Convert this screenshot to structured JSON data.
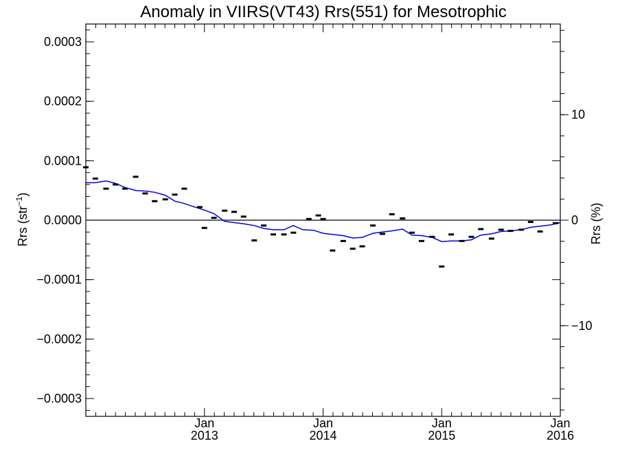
{
  "chart_data": {
    "type": "scatter",
    "title": "Anomaly in VIIRS(VT43) Rrs(551) for Mesotrophic",
    "ylabel_left": "Rrs (str",
    "ylabel_left_sup": "−1",
    "ylabel_left_end": ")",
    "ylabel_right": "Rrs (%)",
    "xlim": [
      2012.0,
      2016.0
    ],
    "ylim": [
      -0.00033,
      0.00033
    ],
    "y2lim": [
      -18.6,
      18.6
    ],
    "x_ticks": [
      {
        "x": 2013.0,
        "month": "Jan",
        "year": "2013"
      },
      {
        "x": 2014.0,
        "month": "Jan",
        "year": "2014"
      },
      {
        "x": 2015.0,
        "month": "Jan",
        "year": "2015"
      },
      {
        "x": 2016.0,
        "month": "Jan",
        "year": "2016"
      }
    ],
    "y_ticks": [
      {
        "value": 0.0003,
        "label": "0.0003"
      },
      {
        "value": 0.0002,
        "label": "0.0002"
      },
      {
        "value": 0.0001,
        "label": "0.0001"
      },
      {
        "value": 0.0,
        "label": "0.0000"
      },
      {
        "value": -0.0001,
        "label": "−0.0001"
      },
      {
        "value": -0.0002,
        "label": "−0.0002"
      },
      {
        "value": -0.0003,
        "label": "−0.0003"
      }
    ],
    "y2_ticks": [
      {
        "value": 10,
        "label": "10"
      },
      {
        "value": 0,
        "label": "0"
      },
      {
        "value": -10,
        "label": "−10"
      }
    ],
    "zero_line": 0.0,
    "series": [
      {
        "kind": "points",
        "color": "#000000",
        "values": [
          {
            "x": 2012.0,
            "y": 8.9e-05
          },
          {
            "x": 2012.08,
            "y": 7e-05
          },
          {
            "x": 2012.17,
            "y": 5.3e-05
          },
          {
            "x": 2012.25,
            "y": 6e-05
          },
          {
            "x": 2012.33,
            "y": 5.3e-05
          },
          {
            "x": 2012.42,
            "y": 7.3e-05
          },
          {
            "x": 2012.5,
            "y": 4.5e-05
          },
          {
            "x": 2012.58,
            "y": 3.2e-05
          },
          {
            "x": 2012.67,
            "y": 3.5e-05
          },
          {
            "x": 2012.75,
            "y": 4.3e-05
          },
          {
            "x": 2012.83,
            "y": 5.3e-05
          },
          {
            "x": 2012.96,
            "y": 2.2e-05
          },
          {
            "x": 2013.0,
            "y": -1.3e-05
          },
          {
            "x": 2013.08,
            "y": 4e-06
          },
          {
            "x": 2013.17,
            "y": 1.6e-05
          },
          {
            "x": 2013.25,
            "y": 1.4e-05
          },
          {
            "x": 2013.33,
            "y": 6e-06
          },
          {
            "x": 2013.42,
            "y": -3.4e-05
          },
          {
            "x": 2013.5,
            "y": -9e-06
          },
          {
            "x": 2013.58,
            "y": -2.4e-05
          },
          {
            "x": 2013.67,
            "y": -2.4e-05
          },
          {
            "x": 2013.75,
            "y": -2.1e-05
          },
          {
            "x": 2013.88,
            "y": 2e-06
          },
          {
            "x": 2013.96,
            "y": 8e-06
          },
          {
            "x": 2014.0,
            "y": 2e-06
          },
          {
            "x": 2014.08,
            "y": -5.1e-05
          },
          {
            "x": 2014.17,
            "y": -3.5e-05
          },
          {
            "x": 2014.25,
            "y": -4.8e-05
          },
          {
            "x": 2014.33,
            "y": -4.4e-05
          },
          {
            "x": 2014.42,
            "y": -9e-06
          },
          {
            "x": 2014.5,
            "y": -2.3e-05
          },
          {
            "x": 2014.58,
            "y": 1e-05
          },
          {
            "x": 2014.67,
            "y": 3e-06
          },
          {
            "x": 2014.75,
            "y": -2.1e-05
          },
          {
            "x": 2014.83,
            "y": -3.5e-05
          },
          {
            "x": 2014.92,
            "y": -2.8e-05
          },
          {
            "x": 2015.0,
            "y": -7.8e-05
          },
          {
            "x": 2015.08,
            "y": -2.4e-05
          },
          {
            "x": 2015.17,
            "y": -3.5e-05
          },
          {
            "x": 2015.25,
            "y": -2.8e-05
          },
          {
            "x": 2015.33,
            "y": -1.5e-05
          },
          {
            "x": 2015.42,
            "y": -3.1e-05
          },
          {
            "x": 2015.5,
            "y": -1.6e-05
          },
          {
            "x": 2015.58,
            "y": -1.8e-05
          },
          {
            "x": 2015.67,
            "y": -1.6e-05
          },
          {
            "x": 2015.75,
            "y": -3e-06
          },
          {
            "x": 2015.83,
            "y": -1.9e-05
          },
          {
            "x": 2015.96,
            "y": -5e-06
          }
        ]
      },
      {
        "kind": "line",
        "color": "#0000dd",
        "values": [
          {
            "x": 2012.0,
            "y": 6.3e-05
          },
          {
            "x": 2012.08,
            "y": 6.3e-05
          },
          {
            "x": 2012.17,
            "y": 6.6e-05
          },
          {
            "x": 2012.25,
            "y": 6.2e-05
          },
          {
            "x": 2012.33,
            "y": 5.5e-05
          },
          {
            "x": 2012.42,
            "y": 5e-05
          },
          {
            "x": 2012.5,
            "y": 4.9e-05
          },
          {
            "x": 2012.58,
            "y": 4.7e-05
          },
          {
            "x": 2012.67,
            "y": 4.2e-05
          },
          {
            "x": 2012.75,
            "y": 3.2e-05
          },
          {
            "x": 2012.83,
            "y": 2.8e-05
          },
          {
            "x": 2012.92,
            "y": 2.2e-05
          },
          {
            "x": 2013.0,
            "y": 1.7e-05
          },
          {
            "x": 2013.08,
            "y": 1.1e-05
          },
          {
            "x": 2013.17,
            "y": -2e-06
          },
          {
            "x": 2013.25,
            "y": -4e-06
          },
          {
            "x": 2013.33,
            "y": -6e-06
          },
          {
            "x": 2013.42,
            "y": -9e-06
          },
          {
            "x": 2013.5,
            "y": -1.4e-05
          },
          {
            "x": 2013.58,
            "y": -1.6e-05
          },
          {
            "x": 2013.67,
            "y": -1.6e-05
          },
          {
            "x": 2013.75,
            "y": -9e-06
          },
          {
            "x": 2013.83,
            "y": -1.6e-05
          },
          {
            "x": 2013.92,
            "y": -1.7e-05
          },
          {
            "x": 2014.0,
            "y": -2.2e-05
          },
          {
            "x": 2014.08,
            "y": -2.4e-05
          },
          {
            "x": 2014.17,
            "y": -2.6e-05
          },
          {
            "x": 2014.25,
            "y": -3e-05
          },
          {
            "x": 2014.33,
            "y": -2.9e-05
          },
          {
            "x": 2014.42,
            "y": -2.2e-05
          },
          {
            "x": 2014.5,
            "y": -2e-05
          },
          {
            "x": 2014.58,
            "y": -1.8e-05
          },
          {
            "x": 2014.67,
            "y": -1.5e-05
          },
          {
            "x": 2014.75,
            "y": -2.5e-05
          },
          {
            "x": 2014.83,
            "y": -2.6e-05
          },
          {
            "x": 2014.92,
            "y": -2.9e-05
          },
          {
            "x": 2015.0,
            "y": -3.6e-05
          },
          {
            "x": 2015.08,
            "y": -3.5e-05
          },
          {
            "x": 2015.17,
            "y": -3.5e-05
          },
          {
            "x": 2015.25,
            "y": -3.3e-05
          },
          {
            "x": 2015.33,
            "y": -2.5e-05
          },
          {
            "x": 2015.42,
            "y": -2.3e-05
          },
          {
            "x": 2015.5,
            "y": -1.9e-05
          },
          {
            "x": 2015.58,
            "y": -1.8e-05
          },
          {
            "x": 2015.67,
            "y": -1.6e-05
          },
          {
            "x": 2015.75,
            "y": -1.2e-05
          },
          {
            "x": 2015.83,
            "y": -1e-05
          },
          {
            "x": 2015.92,
            "y": -8e-06
          },
          {
            "x": 2016.0,
            "y": -4e-06
          }
        ]
      }
    ]
  }
}
